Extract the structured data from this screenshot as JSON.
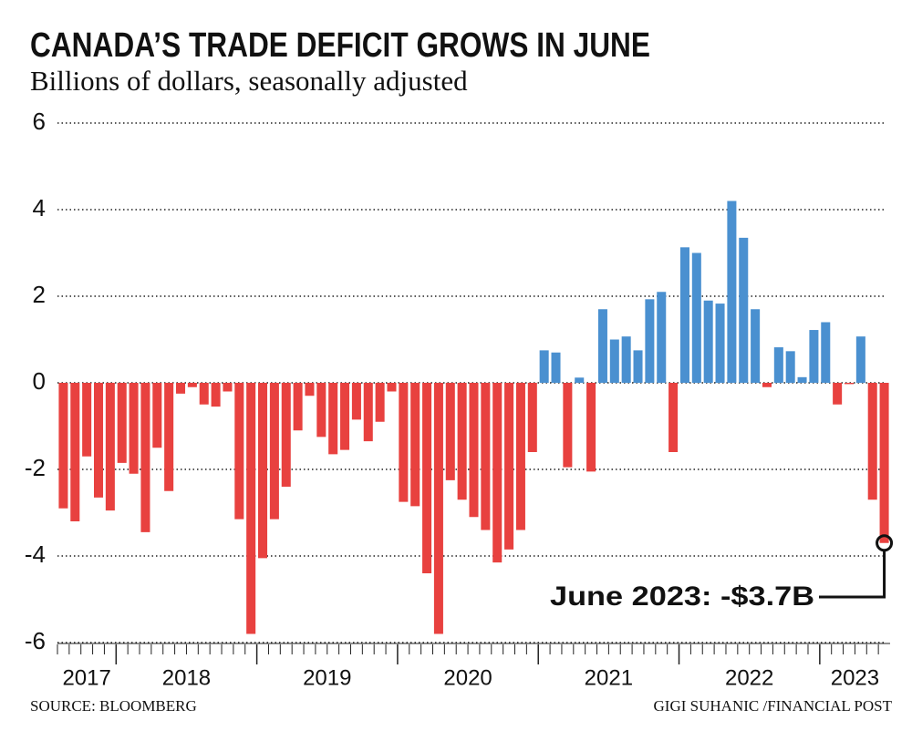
{
  "chart_data": {
    "type": "bar",
    "title": "CANADA’S TRADE DEFICIT GROWS IN JUNE",
    "subtitle": "Billions of dollars, seasonally adjusted",
    "source": "SOURCE: BLOOMBERG",
    "credit": "GIGI SUHANIC /FINANCIAL POST",
    "annotation": "June 2023: -$3.7B",
    "categories": [
      "2017",
      "2017",
      "2017",
      "2017",
      "2017",
      "2018",
      "2018",
      "2018",
      "2018",
      "2018",
      "2018",
      "2018",
      "2018",
      "2018",
      "2018",
      "2018",
      "2018",
      "2019",
      "2019",
      "2019",
      "2019",
      "2019",
      "2019",
      "2019",
      "2019",
      "2019",
      "2019",
      "2019",
      "2019",
      "2020",
      "2020",
      "2020",
      "2020",
      "2020",
      "2020",
      "2020",
      "2020",
      "2020",
      "2020",
      "2020",
      "2020",
      "2021",
      "2021",
      "2021",
      "2021",
      "2021",
      "2021",
      "2021",
      "2021",
      "2021",
      "2021",
      "2021",
      "2021",
      "2022",
      "2022",
      "2022",
      "2022",
      "2022",
      "2022",
      "2022",
      "2022",
      "2022",
      "2022",
      "2022",
      "2022",
      "2023",
      "2023",
      "2023",
      "2023",
      "2023",
      "2023"
    ],
    "values": [
      -2.9,
      -3.2,
      -1.7,
      -2.65,
      -2.95,
      -1.85,
      -2.1,
      -3.45,
      -1.5,
      -2.5,
      -0.25,
      -0.1,
      -0.5,
      -0.55,
      -0.2,
      -3.15,
      -5.8,
      -4.05,
      -3.15,
      -2.4,
      -1.1,
      -0.3,
      -1.25,
      -1.65,
      -1.55,
      -0.85,
      -1.35,
      -0.9,
      -0.2,
      -2.75,
      -2.85,
      -4.4,
      -5.8,
      -2.25,
      -2.7,
      -3.1,
      -3.4,
      -4.15,
      -3.85,
      -3.4,
      -1.6,
      0.75,
      0.7,
      -1.95,
      0.12,
      -2.05,
      1.7,
      1.0,
      1.07,
      0.75,
      1.93,
      2.1,
      -1.6,
      3.13,
      3.0,
      1.9,
      1.83,
      4.2,
      3.35,
      1.7,
      -0.1,
      0.82,
      0.73,
      0.13,
      1.22,
      1.4,
      -0.5,
      -0.03,
      1.07,
      -2.7,
      -3.7
    ],
    "positive_color": "#4a90d0",
    "negative_color": "#e8413f",
    "ylim": [
      -6,
      6
    ],
    "yticks": [
      -6,
      -4,
      -2,
      0,
      2,
      4,
      6
    ],
    "grid": true
  }
}
